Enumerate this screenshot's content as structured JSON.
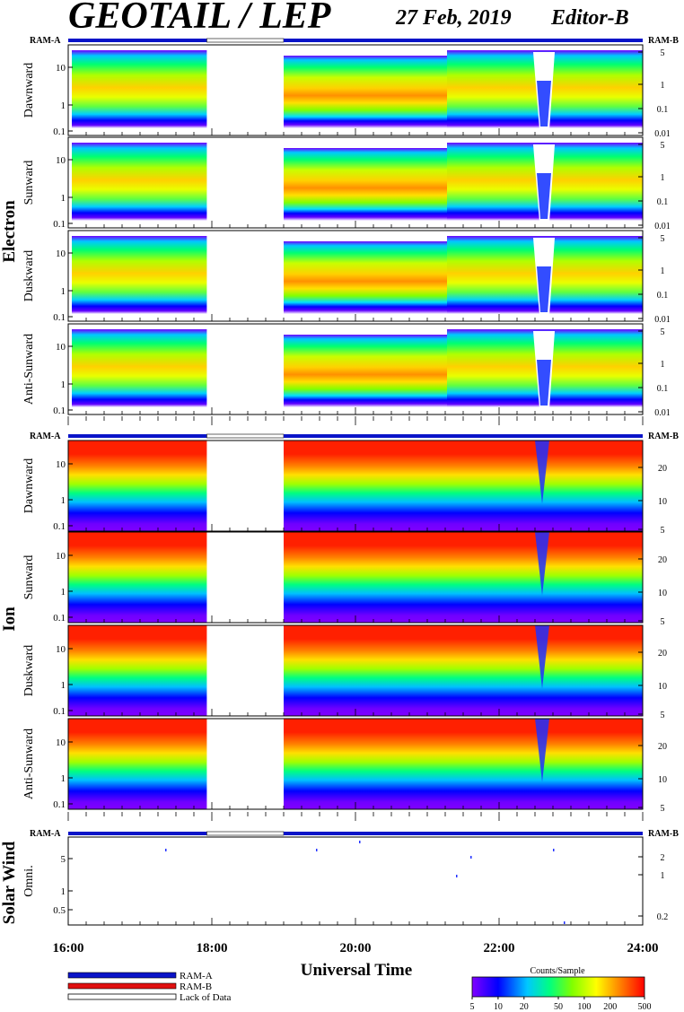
{
  "header": {
    "title": "GEOTAIL / LEP",
    "date": "27 Feb, 2019",
    "editor": "Editor-B"
  },
  "mode_bar": {
    "left": "RAM-A",
    "right": "RAM-B"
  },
  "groups": [
    {
      "name": "Electron",
      "left_ticks": [
        "10",
        "1",
        "0.1"
      ],
      "right_ticks": [
        "5",
        "1",
        "0.1",
        "0.01"
      ],
      "panels": [
        "Dawnward",
        "Sunward",
        "Duskward",
        "Anti-Sunward"
      ]
    },
    {
      "name": "Ion",
      "left_ticks": [
        "10",
        "1",
        "0.1"
      ],
      "right_ticks": [
        "20",
        "10",
        "5"
      ],
      "panels": [
        "Dawnward",
        "Sunward",
        "Duskward",
        "Anti-Sunward"
      ]
    },
    {
      "name": "Solar Wind",
      "left_ticks": [
        "5",
        "1",
        "0.5"
      ],
      "right_ticks": [
        "2",
        "1",
        "0.2"
      ],
      "panels": [
        "Omni."
      ]
    }
  ],
  "xaxis": {
    "label": "Universal Time",
    "ticks": [
      "16:00",
      "18:00",
      "20:00",
      "22:00",
      "24:00"
    ]
  },
  "legend": [
    {
      "label": "RAM-A",
      "color": "#0a14c8"
    },
    {
      "label": "RAM-B",
      "color": "#e01010"
    },
    {
      "label": "Lack of Data",
      "color": "#ffffff"
    }
  ],
  "colorbar": {
    "title": "Counts/Sample",
    "ticks": [
      "5",
      "10",
      "20",
      "50",
      "100",
      "200",
      "500"
    ]
  },
  "chart_data": {
    "type": "heatmap",
    "title": "GEOTAIL / LEP",
    "xlabel": "Universal Time",
    "x_range_hours": [
      16,
      24
    ],
    "data_gap_hours": [
      17.93,
      19.0
    ],
    "colorbar_range": [
      5,
      500
    ],
    "colorscale": [
      "#8000ff",
      "#0000ff",
      "#00c0ff",
      "#00ff80",
      "#80ff00",
      "#ffff00",
      "#ff8000",
      "#ff0000"
    ]
  }
}
